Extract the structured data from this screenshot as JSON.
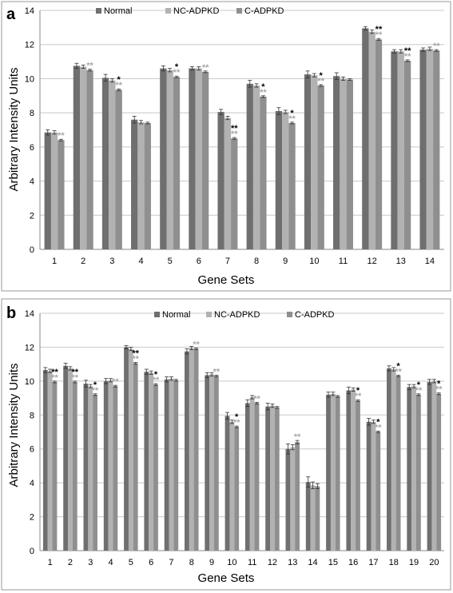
{
  "colors": {
    "Normal": "#6f6f6f",
    "NC-ADPKD": "#b2b2b2",
    "C-ADPKD": "#8f8f8f",
    "sig_vs_normal": "#000000",
    "sig_vs_nc": "#a8a8a8"
  },
  "chart_data": [
    {
      "type": "bar",
      "panel_label": "a",
      "xlabel": "Gene Sets",
      "ylabel": "Arbitrary Intensity Units",
      "ylim": [
        0,
        14
      ],
      "yticks": [
        0,
        2,
        4,
        6,
        8,
        10,
        12,
        14
      ],
      "grid": true,
      "legend_position": "top",
      "categories": [
        "1",
        "2",
        "3",
        "4",
        "5",
        "6",
        "7",
        "8",
        "9",
        "10",
        "11",
        "12",
        "13",
        "14"
      ],
      "series": [
        {
          "name": "Normal",
          "values": [
            6.85,
            10.75,
            10.05,
            7.6,
            10.6,
            10.6,
            8.05,
            9.7,
            8.1,
            10.25,
            10.15,
            12.95,
            11.6,
            11.7
          ],
          "errors": [
            0.15,
            0.15,
            0.2,
            0.2,
            0.15,
            0.1,
            0.15,
            0.2,
            0.2,
            0.2,
            0.2,
            0.1,
            0.1,
            0.1
          ]
        },
        {
          "name": "NC-ADPKD",
          "values": [
            6.85,
            10.7,
            9.9,
            7.45,
            10.5,
            10.6,
            7.7,
            9.6,
            8.05,
            10.2,
            10.0,
            12.75,
            11.6,
            11.75
          ],
          "errors": [
            0.1,
            0.1,
            0.1,
            0.1,
            0.1,
            0.1,
            0.1,
            0.1,
            0.1,
            0.1,
            0.1,
            0.1,
            0.1,
            0.1
          ]
        },
        {
          "name": "C-ADPKD",
          "values": [
            6.4,
            10.5,
            9.35,
            7.4,
            10.1,
            10.4,
            6.5,
            8.95,
            7.4,
            9.6,
            9.95,
            12.3,
            11.05,
            11.65
          ],
          "errors": [
            0.05,
            0.05,
            0.05,
            0.05,
            0.05,
            0.05,
            0.05,
            0.05,
            0.05,
            0.05,
            0.05,
            0.05,
            0.05,
            0.05
          ]
        }
      ],
      "annotations": [
        {
          "category": "1",
          "vs_normal": "",
          "vs_nc": "**"
        },
        {
          "category": "2",
          "vs_normal": "",
          "vs_nc": "**"
        },
        {
          "category": "3",
          "vs_normal": "*",
          "vs_nc": "**"
        },
        {
          "category": "5",
          "vs_normal": "*",
          "vs_nc": "**"
        },
        {
          "category": "6",
          "vs_normal": "",
          "vs_nc": "**"
        },
        {
          "category": "7",
          "vs_normal": "**",
          "vs_nc": "**"
        },
        {
          "category": "8",
          "vs_normal": "*",
          "vs_nc": "**"
        },
        {
          "category": "9",
          "vs_normal": "*",
          "vs_nc": "**"
        },
        {
          "category": "10",
          "vs_normal": "*",
          "vs_nc": "**"
        },
        {
          "category": "12",
          "vs_normal": "**",
          "vs_nc": "**"
        },
        {
          "category": "13",
          "vs_normal": "**",
          "vs_nc": "**"
        },
        {
          "category": "14",
          "vs_normal": "",
          "vs_nc": "**"
        }
      ]
    },
    {
      "type": "bar",
      "panel_label": "b",
      "xlabel": "Gene Sets",
      "ylabel": "Arbitrary Intensity Units",
      "ylim": [
        0,
        14
      ],
      "yticks": [
        0,
        2,
        4,
        6,
        8,
        10,
        12,
        14
      ],
      "grid": true,
      "legend_position": "top",
      "categories": [
        "1",
        "2",
        "3",
        "4",
        "5",
        "6",
        "7",
        "8",
        "9",
        "10",
        "11",
        "12",
        "13",
        "14",
        "15",
        "16",
        "17",
        "18",
        "19",
        "20"
      ],
      "series": [
        {
          "name": "Normal",
          "values": [
            10.65,
            10.9,
            9.85,
            10.0,
            12.0,
            10.55,
            10.1,
            11.75,
            10.35,
            7.95,
            8.7,
            8.5,
            6.0,
            4.05,
            9.2,
            9.45,
            7.6,
            10.75,
            9.65,
            9.95
          ],
          "errors": [
            0.15,
            0.15,
            0.2,
            0.15,
            0.1,
            0.15,
            0.15,
            0.15,
            0.15,
            0.2,
            0.2,
            0.2,
            0.3,
            0.3,
            0.15,
            0.2,
            0.2,
            0.15,
            0.15,
            0.15
          ]
        },
        {
          "name": "NC-ADPKD",
          "values": [
            10.6,
            10.75,
            9.7,
            10.05,
            11.9,
            10.5,
            10.15,
            11.95,
            10.4,
            7.6,
            9.05,
            8.55,
            6.1,
            3.85,
            9.25,
            9.5,
            7.6,
            10.7,
            9.7,
            10.0
          ],
          "errors": [
            0.1,
            0.1,
            0.1,
            0.1,
            0.1,
            0.1,
            0.1,
            0.1,
            0.1,
            0.1,
            0.1,
            0.1,
            0.15,
            0.2,
            0.1,
            0.1,
            0.1,
            0.1,
            0.1,
            0.1
          ]
        },
        {
          "name": "C-ADPKD",
          "values": [
            9.95,
            9.95,
            9.2,
            9.7,
            11.05,
            9.8,
            10.05,
            11.9,
            10.3,
            7.3,
            8.7,
            8.45,
            6.4,
            3.8,
            9.1,
            8.85,
            7.0,
            10.3,
            9.2,
            9.25
          ],
          "errors": [
            0.05,
            0.05,
            0.05,
            0.05,
            0.05,
            0.05,
            0.05,
            0.05,
            0.05,
            0.05,
            0.05,
            0.05,
            0.1,
            0.15,
            0.05,
            0.05,
            0.05,
            0.05,
            0.05,
            0.05
          ]
        }
      ],
      "annotations": [
        {
          "category": "1",
          "vs_normal": "**",
          "vs_nc": "**"
        },
        {
          "category": "2",
          "vs_normal": "**",
          "vs_nc": "**"
        },
        {
          "category": "3",
          "vs_normal": "*",
          "vs_nc": "**"
        },
        {
          "category": "4",
          "vs_normal": "",
          "vs_nc": "**"
        },
        {
          "category": "5",
          "vs_normal": "**",
          "vs_nc": "**"
        },
        {
          "category": "6",
          "vs_normal": "*",
          "vs_nc": "**"
        },
        {
          "category": "8",
          "vs_normal": "",
          "vs_nc": "**"
        },
        {
          "category": "9",
          "vs_normal": "",
          "vs_nc": "**"
        },
        {
          "category": "10",
          "vs_normal": "*",
          "vs_nc": "**"
        },
        {
          "category": "11",
          "vs_normal": "",
          "vs_nc": "**"
        },
        {
          "category": "13",
          "vs_normal": "",
          "vs_nc": "**"
        },
        {
          "category": "16",
          "vs_normal": "*",
          "vs_nc": "**"
        },
        {
          "category": "17",
          "vs_normal": "*",
          "vs_nc": "**"
        },
        {
          "category": "18",
          "vs_normal": "*",
          "vs_nc": "**"
        },
        {
          "category": "19",
          "vs_normal": "*",
          "vs_nc": "**"
        },
        {
          "category": "20",
          "vs_normal": "*",
          "vs_nc": "**"
        }
      ]
    }
  ]
}
